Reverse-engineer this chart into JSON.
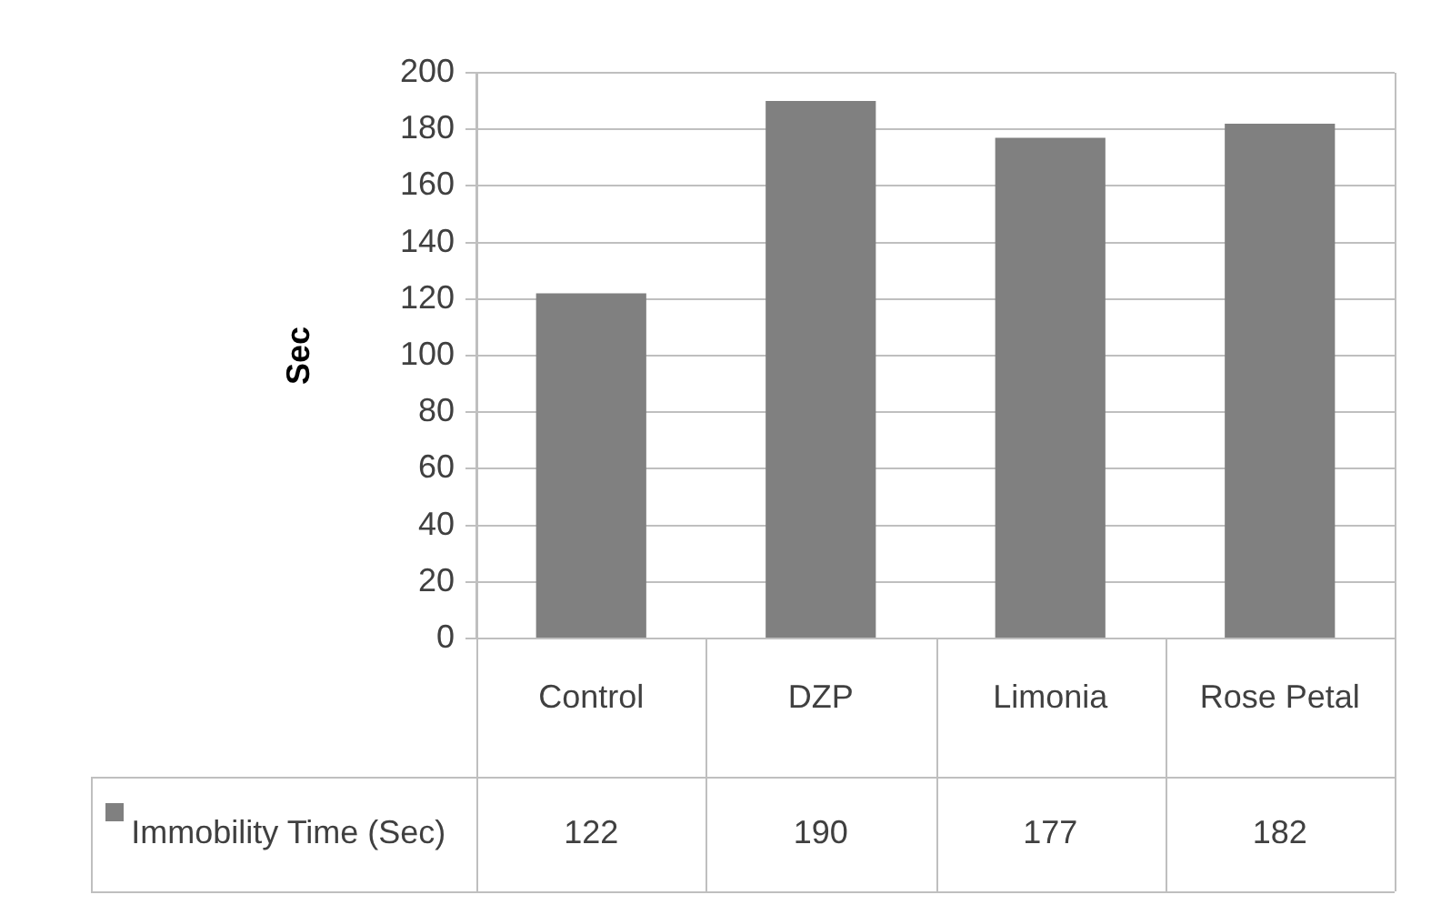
{
  "chart_data": {
    "type": "bar",
    "ylabel": "Sec",
    "categories": [
      "Control",
      "DZP",
      "Limonia",
      "Rose Petal"
    ],
    "series": [
      {
        "name": "Immobility Time (Sec)",
        "color": "#808080",
        "values": [
          122,
          190,
          177,
          182
        ]
      }
    ],
    "ylim": [
      0,
      200
    ],
    "yticks": [
      0,
      20,
      40,
      60,
      80,
      100,
      120,
      140,
      160,
      180,
      200
    ],
    "grid": "y",
    "data_labels": true
  }
}
